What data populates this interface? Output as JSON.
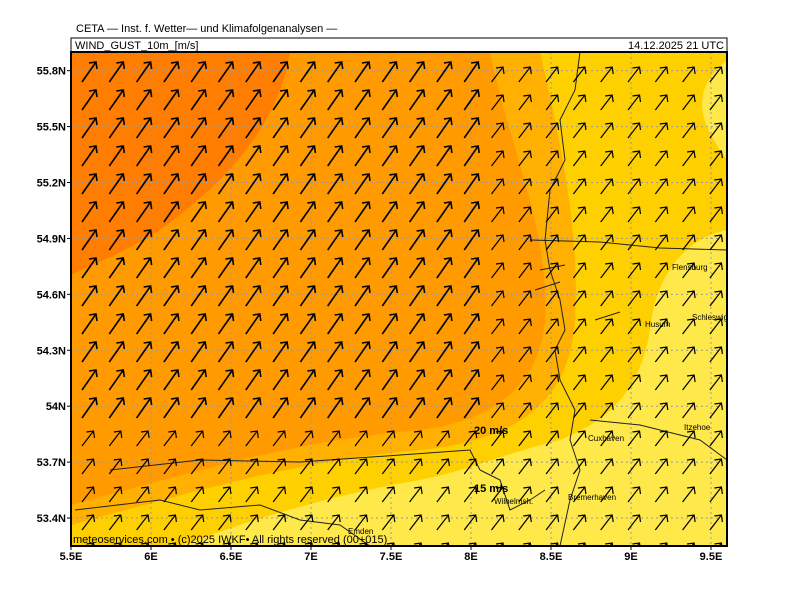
{
  "header": {
    "agency": "CETA — Inst. f. Wetter— und Klimafolgenanalysen —",
    "field": "WIND_GUST_10m_[m/s]",
    "datetime": "14.12.2025 21 UTC"
  },
  "map": {
    "xlim": [
      5.5,
      9.6
    ],
    "ylim": [
      53.25,
      55.9
    ],
    "xticks": [
      {
        "value": 5.5,
        "label": "5.5E"
      },
      {
        "value": 6,
        "label": "6E"
      },
      {
        "value": 6.5,
        "label": "6.5E"
      },
      {
        "value": 7,
        "label": "7E"
      },
      {
        "value": 7.5,
        "label": "7.5E"
      },
      {
        "value": 8,
        "label": "8E"
      },
      {
        "value": 8.5,
        "label": "8.5E"
      },
      {
        "value": 9,
        "label": "9E"
      },
      {
        "value": 9.5,
        "label": "9.5E"
      }
    ],
    "yticks": [
      {
        "value": 53.4,
        "label": "53.4N"
      },
      {
        "value": 53.7,
        "label": "53.7N"
      },
      {
        "value": 54,
        "label": "54N"
      },
      {
        "value": 54.3,
        "label": "54.3N"
      },
      {
        "value": 54.6,
        "label": "54.6N"
      },
      {
        "value": 54.9,
        "label": "54.9N"
      },
      {
        "value": 55.2,
        "label": "55.2N"
      },
      {
        "value": 55.5,
        "label": "55.5N"
      },
      {
        "value": 55.8,
        "label": "55.8N"
      }
    ],
    "contour_labels": [
      "20 m/s",
      "15 m/s"
    ],
    "places": [
      "Flensburg",
      "Husum",
      "Schleswig",
      "Itzehoe",
      "Cuxhaven",
      "Bremerhaven",
      "Wilhelmsh.",
      "Emden"
    ]
  },
  "footer": "meteoservices.com • (c)2025 IWKF• All rights reserved (00+015)"
}
